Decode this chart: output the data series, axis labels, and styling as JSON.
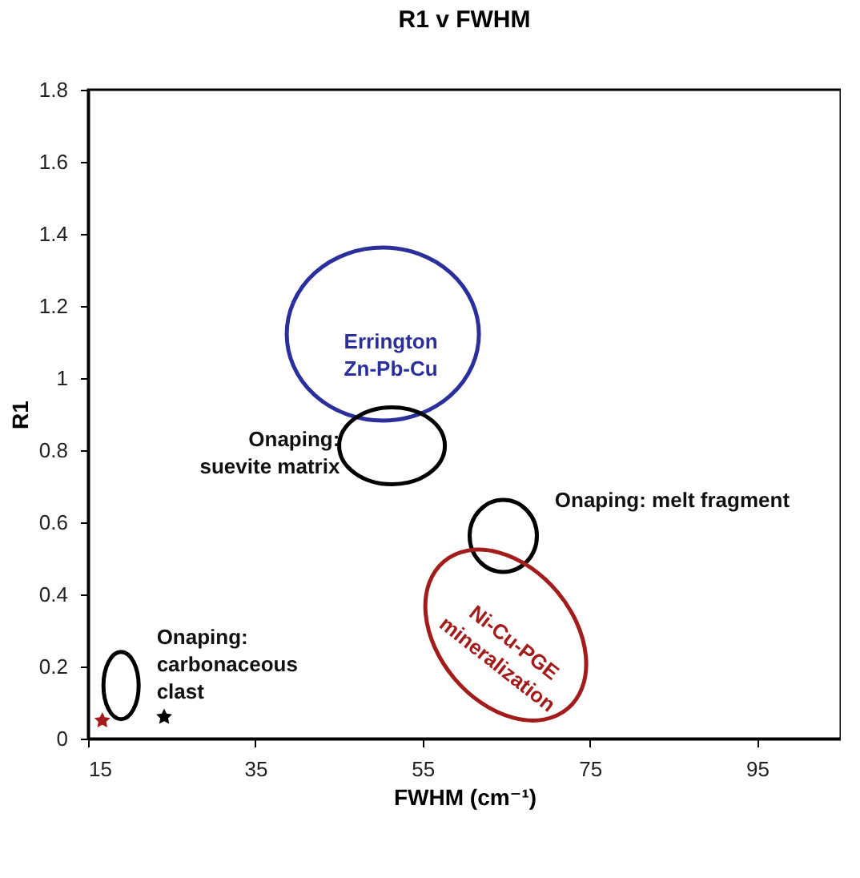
{
  "chart_data": {
    "type": "scatter",
    "title": "R1 v FWHM",
    "xlabel": "FWHM (cm⁻¹)",
    "ylabel": "R1",
    "xlim": [
      15,
      105
    ],
    "ylim": [
      0,
      1.8
    ],
    "xticks": [
      15,
      35,
      55,
      75,
      95
    ],
    "yticks": [
      0,
      0.2,
      0.4,
      0.6,
      0.8,
      1,
      1.2,
      1.4,
      1.6,
      1.8
    ],
    "grid": false,
    "legend": false,
    "marker": "star",
    "series": [
      {
        "colors": [
          "#a31c1c",
          "#000000"
        ],
        "x": [
          16.7,
          24.1
        ],
        "values": [
          0.05,
          0.06
        ]
      }
    ],
    "annotations": [
      "Errington\nZn-Pb-Cu",
      "Onaping:\nsuevite matrix",
      "Onaping: melt fragment",
      "Ni-Cu-PGE\nmineralization",
      "Onaping:\ncarbonaceous\nclast"
    ]
  }
}
